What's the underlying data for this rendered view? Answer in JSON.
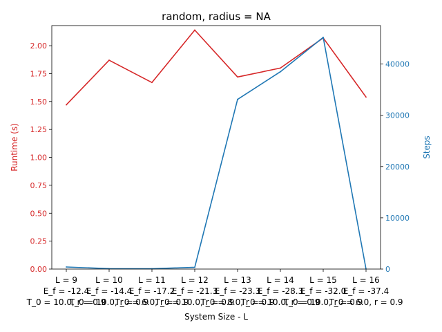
{
  "chart_data": {
    "type": "line",
    "title": "random, radius = NA",
    "xlabel": "System Size - L",
    "categories": [
      [
        "L = 9",
        "E_f = -12.4",
        "T_0 = 10.0, r = 0.9"
      ],
      [
        "L = 10",
        "E_f = -14.4",
        "T_0 = 10.0, r = 0.9"
      ],
      [
        "L = 11",
        "E_f = -17.2",
        "T_0 = 6.0, r = 0.9"
      ],
      [
        "L = 12",
        "E_f = -21.3",
        "T_0 = 10.0, r = 0.9"
      ],
      [
        "L = 13",
        "E_f = -23.3",
        "T_0 = 8.0, r = 0.9"
      ],
      [
        "L = 14",
        "E_f = -28.3",
        "T_0 = 10.0, r = 0.9"
      ],
      [
        "L = 15",
        "E_f = -32.0",
        "T_0 = 10.0, r = 0.9"
      ],
      [
        "L = 16",
        "E_f = -37.4",
        "T_0 = 6.0, r = 0.9"
      ]
    ],
    "left_axis": {
      "label": "Runtime (s)",
      "color": "#d62728",
      "ylim": [
        0,
        2.18
      ],
      "ticks": [
        "0.00",
        "0.25",
        "0.50",
        "0.75",
        "1.00",
        "1.25",
        "1.50",
        "1.75",
        "2.00"
      ]
    },
    "right_axis": {
      "label": "Steps",
      "color": "#1f77b4",
      "ylim": [
        0,
        47500
      ],
      "ticks": [
        "0",
        "10000",
        "20000",
        "30000",
        "40000"
      ]
    },
    "series": [
      {
        "axis": "left",
        "color": "#d62728",
        "values": [
          1.47,
          1.87,
          1.67,
          2.14,
          1.72,
          1.8,
          2.07,
          1.54
        ]
      },
      {
        "axis": "right",
        "color": "#1f77b4",
        "values": [
          400,
          80,
          60,
          350,
          33100,
          38500,
          45200,
          0
        ]
      }
    ],
    "grid": false,
    "legend": "none"
  }
}
